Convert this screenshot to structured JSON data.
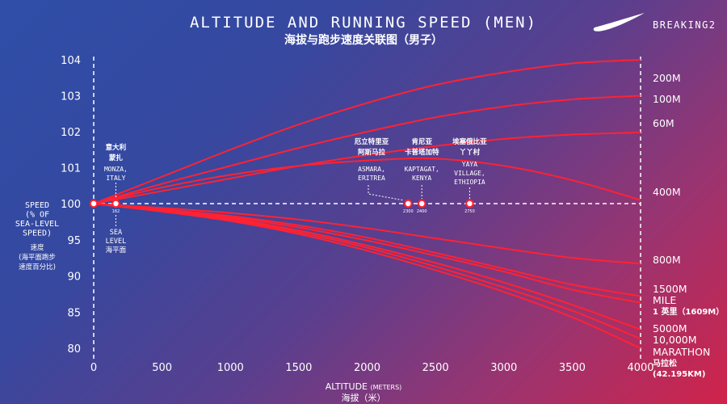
{
  "title_en": "ALTITUDE AND RUNNING SPEED (MEN)",
  "title_cn": "海拔与跑步速度关联图（男子）",
  "brand": {
    "logo_icon": "nike-swoosh-icon",
    "name": "BREAKING2"
  },
  "y_axis_label": {
    "lines": [
      "SPEED",
      "(% OF",
      "SEA-LEVEL",
      "SPEED)"
    ],
    "cn_lines": [
      "速度",
      "(海平面跑步",
      "速度百分比)"
    ]
  },
  "x_axis_label": {
    "en": "ALTITUDE",
    "unit": "(METERS)",
    "cn": "海拔（米）"
  },
  "locations": [
    {
      "cn_lines": [
        "意大利",
        "蒙扎"
      ],
      "en_lines": [
        "MONZA,",
        "ITALY"
      ],
      "alt_label": "162"
    },
    {
      "cn_lines": [
        "SEA",
        "LEVEL",
        "海平面"
      ]
    },
    {
      "cn_lines": [
        "厄立特里亚",
        "阿斯马拉"
      ],
      "en_lines": [
        "ASMARA,",
        "ERITREA"
      ],
      "alt_label": "2300"
    },
    {
      "cn_lines": [
        "肯尼亚",
        "卡普塔加特"
      ],
      "en_lines": [
        "KAPTAGAT,",
        "KENYA"
      ],
      "alt_label": "2400"
    },
    {
      "cn_lines": [
        "埃塞俄比亚",
        "丫丫村"
      ],
      "en_lines": [
        "YAYA",
        "VILLAGE,",
        "ETHIOPIA"
      ],
      "alt_label": "2750"
    }
  ],
  "end_labels": [
    {
      "lines": [
        "200M"
      ]
    },
    {
      "lines": [
        "100M"
      ]
    },
    {
      "lines": [
        "60M"
      ]
    },
    {
      "lines": [
        "400M"
      ]
    },
    {
      "lines": [
        "800M"
      ]
    },
    {
      "lines": [
        "1500M"
      ]
    },
    {
      "lines": [
        "MILE",
        "1 英里（1609M）"
      ]
    },
    {
      "lines": [
        "5000M"
      ]
    },
    {
      "lines": [
        "10,000M"
      ]
    },
    {
      "lines": [
        "MARATHON",
        "马拉松",
        "(42.195KM)"
      ]
    }
  ],
  "colors": {
    "curve": "#ff2233",
    "axis": "#ffffff",
    "bg_start": "#2f4ea8",
    "bg_end": "#d0234a"
  },
  "chart_data": {
    "type": "line",
    "title": "ALTITUDE AND RUNNING SPEED (MEN)",
    "xlabel": "ALTITUDE (METERS)",
    "ylabel": "SPEED (% OF SEA-LEVEL SPEED)",
    "xlim": [
      0,
      4000
    ],
    "ylim": [
      79.5,
      104.5
    ],
    "x_ticks": [
      0,
      500,
      1000,
      1500,
      2000,
      2500,
      3000,
      3500,
      4000
    ],
    "y_ticks": [
      80,
      85,
      90,
      95,
      100,
      101,
      102,
      103,
      104
    ],
    "grid": false,
    "markers": [
      {
        "x": 0,
        "y": 100
      },
      {
        "x": 162,
        "y": 100
      },
      {
        "x": 2300,
        "y": 100
      },
      {
        "x": 2400,
        "y": 100
      },
      {
        "x": 2750,
        "y": 100
      }
    ],
    "series": [
      {
        "name": "200M",
        "x": [
          0,
          500,
          1000,
          1500,
          2000,
          2500,
          3000,
          3500,
          4000
        ],
        "values": [
          100,
          100.75,
          101.5,
          102.2,
          102.8,
          103.3,
          103.65,
          103.9,
          104.0
        ]
      },
      {
        "name": "100M",
        "x": [
          0,
          500,
          1000,
          1500,
          2000,
          2500,
          3000,
          3500,
          4000
        ],
        "values": [
          100,
          100.55,
          101.05,
          101.55,
          102.0,
          102.4,
          102.7,
          102.9,
          103.0
        ]
      },
      {
        "name": "60M",
        "x": [
          0,
          500,
          1000,
          1500,
          2000,
          2500,
          3000,
          3500,
          4000
        ],
        "values": [
          100,
          100.35,
          100.7,
          101.05,
          101.35,
          101.6,
          101.8,
          101.92,
          101.98
        ]
      },
      {
        "name": "400M",
        "x": [
          0,
          500,
          1000,
          1500,
          2000,
          2500,
          3000,
          3500,
          4000
        ],
        "values": [
          100,
          100.45,
          100.8,
          101.05,
          101.2,
          101.25,
          101.05,
          100.65,
          100.1
        ]
      },
      {
        "name": "800M",
        "x": [
          0,
          500,
          1000,
          1500,
          2000,
          2500,
          3000,
          3500,
          4000
        ],
        "values": [
          100,
          99.4,
          98.7,
          97.8,
          96.6,
          95.2,
          93.8,
          92.5,
          91.7
        ]
      },
      {
        "name": "1500M",
        "x": [
          0,
          500,
          1000,
          1500,
          2000,
          2500,
          3000,
          3500,
          4000
        ],
        "values": [
          100,
          99.2,
          98.3,
          97.0,
          95.3,
          93.2,
          91.0,
          88.8,
          87.2
        ]
      },
      {
        "name": "MILE",
        "x": [
          0,
          500,
          1000,
          1500,
          2000,
          2500,
          3000,
          3500,
          4000
        ],
        "values": [
          100,
          99.1,
          98.1,
          96.7,
          94.9,
          92.8,
          90.6,
          88.1,
          86.3
        ]
      },
      {
        "name": "5000M",
        "x": [
          0,
          500,
          1000,
          1500,
          2000,
          2500,
          3000,
          3500,
          4000
        ],
        "values": [
          100,
          99.0,
          97.9,
          96.3,
          94.2,
          91.8,
          89.1,
          86.0,
          82.6
        ]
      },
      {
        "name": "10,000M",
        "x": [
          0,
          500,
          1000,
          1500,
          2000,
          2500,
          3000,
          3500,
          4000
        ],
        "values": [
          100,
          98.95,
          97.75,
          96.05,
          93.9,
          91.3,
          88.4,
          85.2,
          81.3
        ]
      },
      {
        "name": "MARATHON",
        "x": [
          0,
          500,
          1000,
          1500,
          2000,
          2500,
          3000,
          3500,
          4000
        ],
        "values": [
          100,
          98.9,
          97.6,
          95.8,
          93.5,
          90.8,
          87.8,
          84.3,
          80.0
        ]
      }
    ]
  }
}
